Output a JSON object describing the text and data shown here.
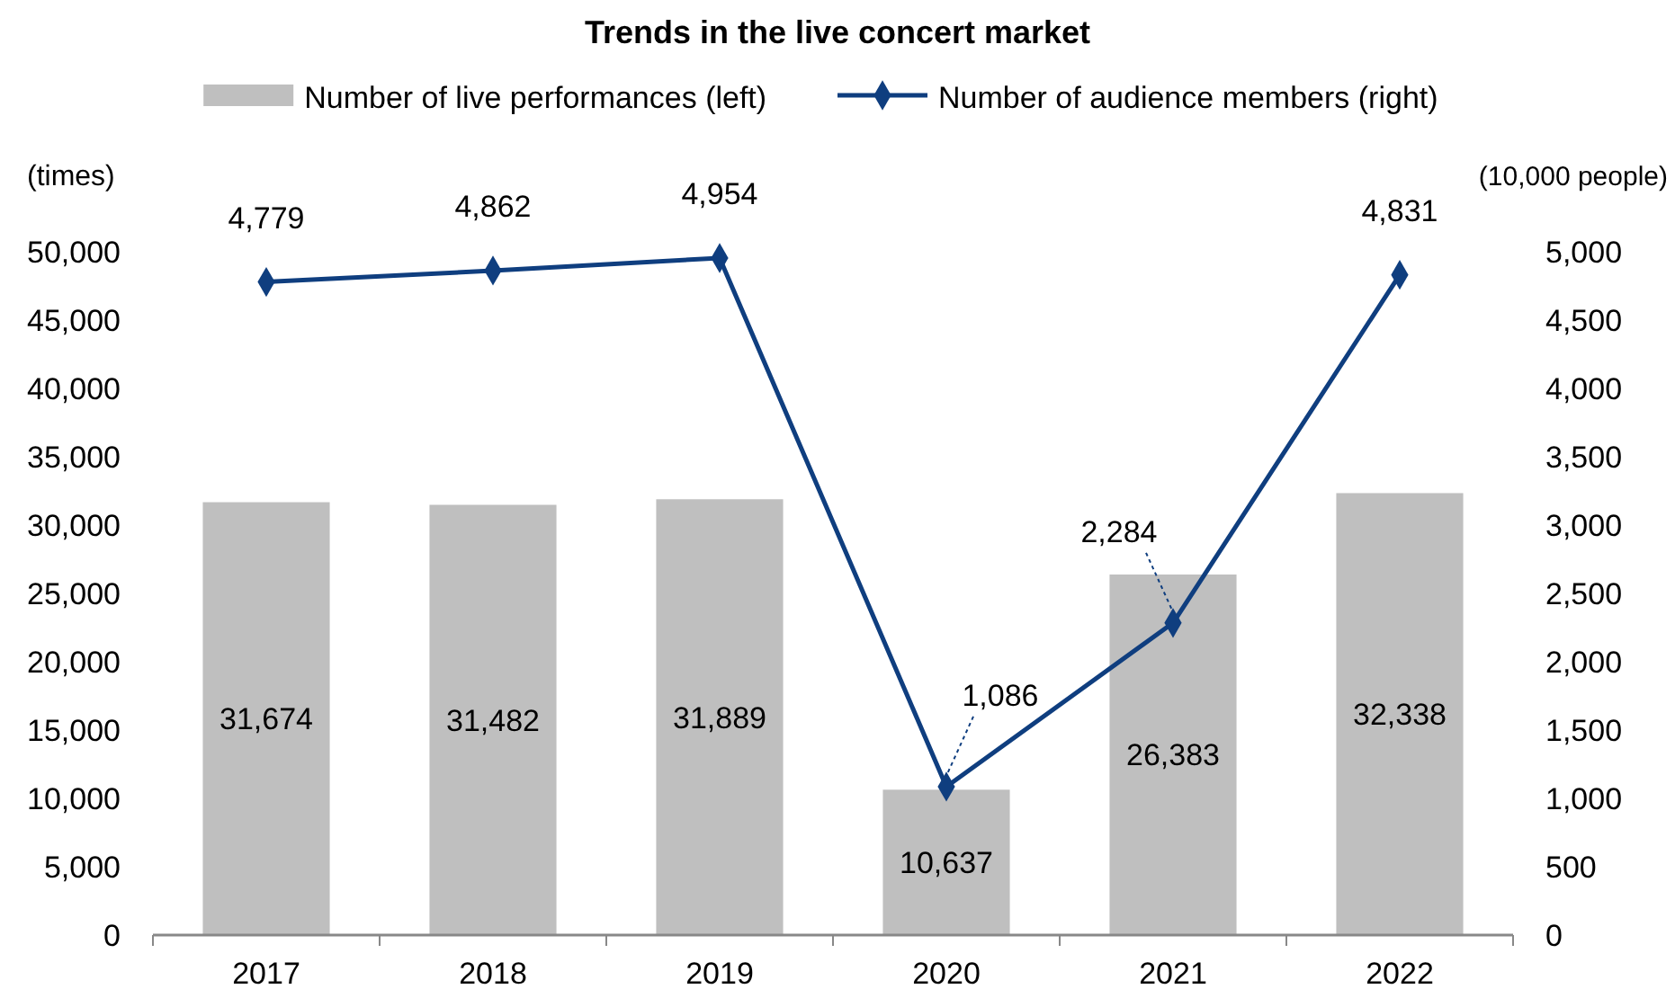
{
  "chart_data": {
    "type": "bar",
    "title": "Trends in the live concert market",
    "ylabel": "(times)",
    "y2label": "(10,000 people)",
    "categories": [
      "2017",
      "2018",
      "2019",
      "2020",
      "2021",
      "2022"
    ],
    "series": [
      {
        "name": "Number of live performances (left)",
        "color": "#bfbfbf",
        "values": [
          31674,
          31482,
          31889,
          10637,
          26383,
          32338
        ],
        "value_labels": [
          "31,674",
          "31,482",
          "31,889",
          "10,637",
          "26,383",
          "32,338"
        ]
      },
      {
        "name": "Number of audience members (right)",
        "type": "line",
        "axis": "y2",
        "color": "#0f3e7f",
        "marker": "diamond",
        "values": [
          4779,
          4862,
          4954,
          1086,
          2284,
          4831
        ],
        "value_labels": [
          "4,779",
          "4,862",
          "4,954",
          "1,086",
          "2,284",
          "4,831"
        ]
      }
    ],
    "ylim": [
      0,
      50000
    ],
    "yticks": [
      0,
      {
        "value": 5000,
        "label": "5,000"
      },
      {
        "value": 10000,
        "label": "10,000"
      },
      {
        "value": 15000,
        "label": "15,000"
      },
      {
        "value": 20000,
        "label": "20,000"
      },
      {
        "value": 25000,
        "label": "25,000"
      },
      {
        "value": 30000,
        "label": "30,000"
      },
      {
        "value": 35000,
        "label": "35,000"
      },
      {
        "value": 40000,
        "label": "40,000"
      },
      {
        "value": 45000,
        "label": "45,000"
      },
      {
        "value": 50000,
        "label": "50,000"
      }
    ],
    "y2lim": [
      0,
      5000
    ],
    "y2ticks": [
      0,
      500,
      {
        "value": 1000,
        "label": "1,000"
      },
      {
        "value": 1500,
        "label": "1,500"
      },
      {
        "value": 2000,
        "label": "2,000"
      },
      {
        "value": 2500,
        "label": "2,500"
      },
      {
        "value": 3000,
        "label": "3,000"
      },
      {
        "value": 3500,
        "label": "3,500"
      },
      {
        "value": 4000,
        "label": "4,000"
      },
      {
        "value": 4500,
        "label": "4,500"
      },
      {
        "value": 5000,
        "label": "5,000"
      }
    ],
    "legend": "top"
  }
}
